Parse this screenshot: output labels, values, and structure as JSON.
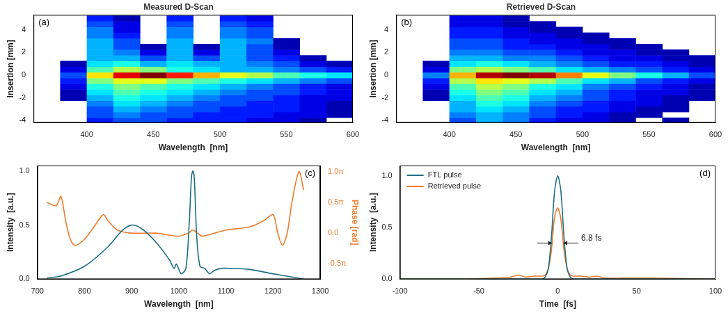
{
  "chart_data": [
    {
      "type": "heatmap",
      "title": "Measured D-Scan",
      "panel": "(a)",
      "x_label": "Wavelength  [nm]",
      "y_label": "Insertion [mm]",
      "xlim": [
        360,
        600
      ],
      "xticks": [
        400,
        450,
        500,
        550,
        600
      ],
      "ylim": [
        -4.2,
        5.3
      ],
      "yticks": [
        -4,
        -2,
        0,
        2,
        4
      ],
      "grid": false,
      "x": [
        370,
        390,
        410,
        430,
        450,
        470,
        490,
        510,
        530,
        550,
        570,
        590
      ],
      "y": [
        -4,
        -3.5,
        -3,
        -2.5,
        -2,
        -1.5,
        -1,
        -0.5,
        0,
        0.5,
        1,
        1.5,
        2,
        2.5,
        3,
        3.5,
        4,
        4.5,
        5
      ],
      "z": [
        [
          0,
          0,
          0.15,
          0.2,
          0.2,
          0.15,
          0.15,
          0.15,
          0.1,
          0.1,
          0.05,
          0
        ],
        [
          0,
          0,
          0.2,
          0.25,
          0.2,
          0.2,
          0.15,
          0.15,
          0.15,
          0.1,
          0.1,
          0.05
        ],
        [
          0,
          0,
          0.2,
          0.3,
          0.25,
          0.2,
          0.2,
          0.15,
          0.15,
          0.15,
          0.1,
          0.05
        ],
        [
          0,
          0.02,
          0.25,
          0.35,
          0.3,
          0.25,
          0.2,
          0.2,
          0.15,
          0.15,
          0.1,
          0.05
        ],
        [
          0,
          0.05,
          0.3,
          0.4,
          0.35,
          0.3,
          0.25,
          0.2,
          0.2,
          0.15,
          0.1,
          0.1
        ],
        [
          0,
          0.05,
          0.35,
          0.45,
          0.4,
          0.35,
          0.3,
          0.25,
          0.2,
          0.2,
          0.15,
          0.1
        ],
        [
          0,
          0.1,
          0.4,
          0.5,
          0.45,
          0.4,
          0.35,
          0.3,
          0.25,
          0.2,
          0.15,
          0.1
        ],
        [
          0,
          0.15,
          0.5,
          0.6,
          0.6,
          0.5,
          0.45,
          0.4,
          0.35,
          0.3,
          0.25,
          0.2
        ],
        [
          0,
          0.2,
          0.65,
          0.9,
          1.0,
          0.85,
          0.7,
          0.6,
          0.55,
          0.45,
          0.4,
          0.35
        ],
        [
          0,
          0.1,
          0.45,
          0.55,
          0.5,
          0.4,
          0.35,
          0.3,
          0.3,
          0.25,
          0.2,
          0.15
        ],
        [
          0,
          0.05,
          0.35,
          0.4,
          0.3,
          0.35,
          0.3,
          0.3,
          0.25,
          0.2,
          0.1,
          0.05
        ],
        [
          0,
          0.02,
          0.3,
          0.3,
          0.2,
          0.3,
          0.2,
          0.3,
          0.2,
          0.15,
          0.05,
          0
        ],
        [
          0,
          0,
          0.3,
          0.25,
          0.1,
          0.3,
          0.1,
          0.3,
          0.2,
          0.1,
          0,
          0
        ],
        [
          0,
          0,
          0.3,
          0.2,
          0.05,
          0.3,
          0.05,
          0.3,
          0.2,
          0.05,
          0,
          0
        ],
        [
          0,
          0,
          0.3,
          0.2,
          0,
          0.3,
          0,
          0.3,
          0.25,
          0.05,
          0,
          0
        ],
        [
          0,
          0,
          0.25,
          0.15,
          0,
          0.25,
          0,
          0.25,
          0.2,
          0,
          0,
          0
        ],
        [
          0,
          0,
          0.25,
          0.1,
          0,
          0.25,
          0,
          0.25,
          0.2,
          0,
          0,
          0
        ],
        [
          0,
          0,
          0.2,
          0.1,
          0,
          0.2,
          0,
          0.2,
          0.15,
          0,
          0,
          0
        ],
        [
          0,
          0,
          0.15,
          0.05,
          0,
          0.15,
          0,
          0.15,
          0.1,
          0,
          0,
          0
        ]
      ]
    },
    {
      "type": "heatmap",
      "title": "Retrieved D-Scan",
      "panel": "(b)",
      "x_label": "Wavelength  [nm]",
      "y_label": "Insertion [mm]",
      "xlim": [
        360,
        600
      ],
      "xticks": [
        400,
        450,
        500,
        550,
        600
      ],
      "ylim": [
        -4.2,
        5.3
      ],
      "yticks": [
        -4,
        -2,
        0,
        2,
        4
      ],
      "grid": false,
      "x": [
        370,
        390,
        410,
        430,
        450,
        470,
        490,
        510,
        530,
        550,
        570,
        590
      ],
      "y": [
        -4,
        -3.5,
        -3,
        -2.5,
        -2,
        -1.5,
        -1,
        -0.5,
        0,
        0.5,
        1,
        1.5,
        2,
        2.5,
        3,
        3.5,
        4,
        4.5,
        5
      ],
      "z": [
        [
          0,
          0,
          0.2,
          0.3,
          0.25,
          0.15,
          0.1,
          0.1,
          0.05,
          0,
          0.05,
          0
        ],
        [
          0,
          0,
          0.25,
          0.3,
          0.25,
          0.2,
          0.15,
          0.1,
          0.05,
          0.05,
          0,
          0
        ],
        [
          0,
          0,
          0.3,
          0.35,
          0.3,
          0.2,
          0.15,
          0.15,
          0.1,
          0.05,
          0.05,
          0
        ],
        [
          0,
          0.02,
          0.3,
          0.4,
          0.35,
          0.25,
          0.2,
          0.15,
          0.1,
          0.1,
          0.05,
          0
        ],
        [
          0,
          0.05,
          0.35,
          0.45,
          0.4,
          0.3,
          0.25,
          0.2,
          0.15,
          0.1,
          0.05,
          0.05
        ],
        [
          0,
          0.05,
          0.4,
          0.5,
          0.45,
          0.35,
          0.3,
          0.2,
          0.15,
          0.1,
          0.1,
          0.05
        ],
        [
          0,
          0.1,
          0.45,
          0.55,
          0.5,
          0.4,
          0.35,
          0.25,
          0.2,
          0.15,
          0.1,
          0.05
        ],
        [
          0,
          0.15,
          0.55,
          0.65,
          0.6,
          0.55,
          0.45,
          0.35,
          0.3,
          0.2,
          0.15,
          0.1
        ],
        [
          0,
          0.25,
          0.7,
          0.95,
          1.0,
          0.95,
          0.75,
          0.6,
          0.5,
          0.4,
          0.3,
          0.2
        ],
        [
          0,
          0.1,
          0.5,
          0.55,
          0.5,
          0.45,
          0.35,
          0.3,
          0.25,
          0.2,
          0.15,
          0.1
        ],
        [
          0,
          0.05,
          0.35,
          0.4,
          0.35,
          0.3,
          0.25,
          0.2,
          0.15,
          0.15,
          0.1,
          0.05
        ],
        [
          0,
          0.02,
          0.3,
          0.3,
          0.25,
          0.25,
          0.2,
          0.15,
          0.1,
          0.1,
          0.05,
          0.05
        ],
        [
          0,
          0,
          0.25,
          0.25,
          0.2,
          0.2,
          0.15,
          0.1,
          0.1,
          0.05,
          0.05,
          0
        ],
        [
          0,
          0,
          0.2,
          0.2,
          0.15,
          0.15,
          0.1,
          0.1,
          0.05,
          0.05,
          0,
          0
        ],
        [
          0,
          0,
          0.2,
          0.2,
          0.15,
          0.1,
          0.1,
          0.05,
          0.05,
          0,
          0,
          0
        ],
        [
          0,
          0,
          0.15,
          0.15,
          0.1,
          0.1,
          0.05,
          0.05,
          0,
          0,
          0,
          0
        ],
        [
          0,
          0,
          0.15,
          0.15,
          0.1,
          0.05,
          0.05,
          0,
          0,
          0,
          0,
          0
        ],
        [
          0,
          0,
          0.1,
          0.1,
          0.05,
          0.05,
          0,
          0,
          0,
          0,
          0,
          0
        ],
        [
          0,
          0,
          0.1,
          0.1,
          0.05,
          0,
          0,
          0,
          0,
          0,
          0,
          0
        ]
      ]
    },
    {
      "type": "line",
      "panel": "(c)",
      "x_label": "Wavelength  [nm]",
      "y_label": "Intensity  [a.u.]",
      "y2_label": "Phase [rad]",
      "xlim": [
        700,
        1300
      ],
      "xticks": [
        700,
        800,
        900,
        1000,
        1100,
        1200,
        1300
      ],
      "ylim": [
        0,
        1.05
      ],
      "yticks": [
        {
          "value": 0,
          "label": "0.0"
        },
        0.5,
        {
          "value": 1,
          "label": "1.0"
        }
      ],
      "y2lim": [
        -2.36,
        3.46
      ],
      "y2ticks": [
        {
          "value": -1.5708,
          "label": "-0.5π"
        },
        {
          "value": 0,
          "label": "0.0"
        },
        {
          "value": 1.5708,
          "label": "0.5π"
        },
        {
          "value": 3.1416,
          "label": "1.0π"
        }
      ],
      "grid": false,
      "series": [
        {
          "color": "#1d6f80",
          "x": [
            720,
            750,
            800,
            850,
            880,
            900,
            920,
            950,
            980,
            990,
            995,
            1005,
            1015,
            1022,
            1027,
            1030,
            1033,
            1038,
            1045,
            1055,
            1065,
            1075,
            1090,
            1110,
            1150,
            1200,
            1240,
            1265
          ],
          "values": [
            0.01,
            0.03,
            0.12,
            0.3,
            0.45,
            0.5,
            0.47,
            0.35,
            0.18,
            0.1,
            0.14,
            0.05,
            0.1,
            0.5,
            0.95,
            1.0,
            0.93,
            0.4,
            0.12,
            0.1,
            0.05,
            0.08,
            0.1,
            0.1,
            0.09,
            0.05,
            0.02,
            0
          ]
        },
        {
          "color": "#f07a2b",
          "axis": "y2",
          "x": [
            720,
            740,
            750,
            760,
            770,
            780,
            800,
            820,
            840,
            850,
            870,
            900,
            950,
            1000,
            1020,
            1030,
            1040,
            1050,
            1100,
            1150,
            1180,
            1200,
            1210,
            1220,
            1230,
            1240,
            1255,
            1265
          ],
          "values": [
            1.571,
            1.414,
            1.885,
            0.628,
            -0.314,
            -0.628,
            -0.314,
            0.314,
            0.942,
            0.628,
            0.157,
            0,
            0,
            -0.157,
            0,
            0.157,
            0,
            -0.157,
            0.157,
            0.314,
            0.628,
            0.942,
            0,
            -0.628,
            0,
            1.571,
            3.142,
            2.199
          ]
        }
      ]
    },
    {
      "type": "line",
      "panel": "(d)",
      "x_label": "Time  [fs]",
      "y_label": "Intensity  [a.u.]",
      "xlim": [
        -100,
        100
      ],
      "xticks": [
        -100,
        -50,
        0,
        50,
        100
      ],
      "ylim": [
        0,
        1.1
      ],
      "yticks": [
        {
          "value": 0,
          "label": "0.0"
        },
        0.5,
        {
          "value": 1,
          "label": "1.0"
        }
      ],
      "grid": false,
      "legend": "upper left",
      "x": [
        -100,
        -60,
        -40,
        -30,
        -25,
        -20,
        -15,
        -10,
        -8,
        -6,
        -4,
        -2,
        0,
        2,
        4,
        6,
        8,
        10,
        15,
        20,
        25,
        30,
        40,
        60,
        100
      ],
      "series": [
        {
          "name": "FTL pulse",
          "color": "#1d6f80",
          "values": [
            0,
            0,
            0,
            0,
            0,
            0,
            0,
            0,
            0.02,
            0.1,
            0.4,
            0.85,
            1.0,
            0.85,
            0.4,
            0.1,
            0.02,
            0,
            0,
            0,
            0,
            0,
            0,
            0,
            0
          ]
        },
        {
          "name": "Retrieved pulse",
          "color": "#f07a2b",
          "values": [
            0,
            0,
            0.01,
            0.02,
            0.04,
            0.02,
            0.03,
            0.03,
            0.04,
            0.1,
            0.28,
            0.6,
            0.69,
            0.58,
            0.28,
            0.1,
            0.04,
            0.03,
            0.03,
            0.02,
            0.03,
            0.01,
            0.01,
            0.01,
            0
          ]
        }
      ],
      "annotation": {
        "text": "6.8 fs",
        "from": -3.4,
        "to": 3.4,
        "y": 0.35
      }
    }
  ]
}
